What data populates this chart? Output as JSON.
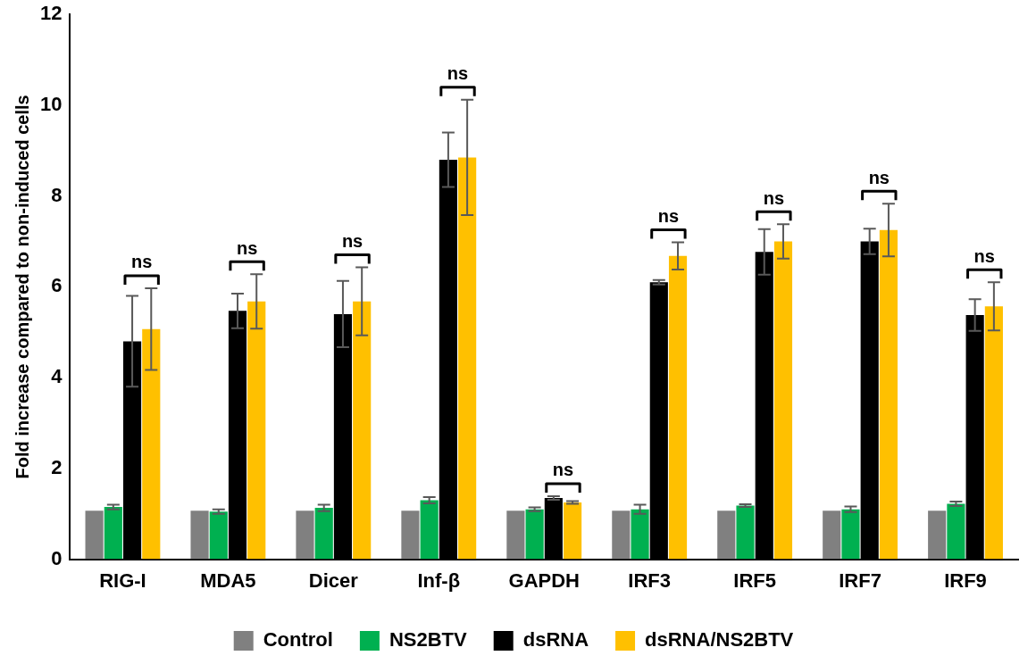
{
  "chart_data": {
    "type": "bar",
    "ylabel": "Fold increase compared to non-induced cells",
    "categories": [
      "RIG-I",
      "MDA5",
      "Dicer",
      "Inf-β",
      "GAPDH",
      "IRF3",
      "IRF5",
      "IRF7",
      "IRF9"
    ],
    "series": [
      {
        "name": "Control",
        "color": "#808080",
        "values": [
          1.07,
          1.07,
          1.07,
          1.07,
          1.07,
          1.07,
          1.07,
          1.07,
          1.07
        ]
      },
      {
        "name": "NS2BTV",
        "color": "#00b050",
        "values": [
          1.15,
          1.05,
          1.13,
          1.3,
          1.1,
          1.1,
          1.18,
          1.1,
          1.22
        ],
        "errors": [
          0.05,
          0.05,
          0.07,
          0.07,
          0.04,
          0.1,
          0.03,
          0.06,
          0.05
        ]
      },
      {
        "name": "dsRNA",
        "color": "#000000",
        "values": [
          4.8,
          5.47,
          5.4,
          8.8,
          1.35,
          6.1,
          6.77,
          7.0,
          5.38
        ],
        "errors": [
          1.0,
          0.38,
          0.73,
          0.6,
          0.04,
          0.05,
          0.5,
          0.28,
          0.35
        ]
      },
      {
        "name": "dsRNA/NS2BTV",
        "color": "#ffc000",
        "values": [
          5.07,
          5.68,
          5.68,
          8.85,
          1.25,
          6.68,
          7.0,
          7.25,
          5.57
        ],
        "errors": [
          0.9,
          0.6,
          0.75,
          1.27,
          0.03,
          0.3,
          0.38,
          0.58,
          0.53
        ]
      }
    ],
    "ylim": [
      0,
      12
    ],
    "yticks": [
      0,
      2,
      4,
      6,
      8,
      10,
      12
    ],
    "grid": false,
    "legend": "bottom",
    "annotations": [
      "ns",
      "ns",
      "ns",
      "ns",
      "ns",
      "ns",
      "ns",
      "ns",
      "ns"
    ]
  }
}
